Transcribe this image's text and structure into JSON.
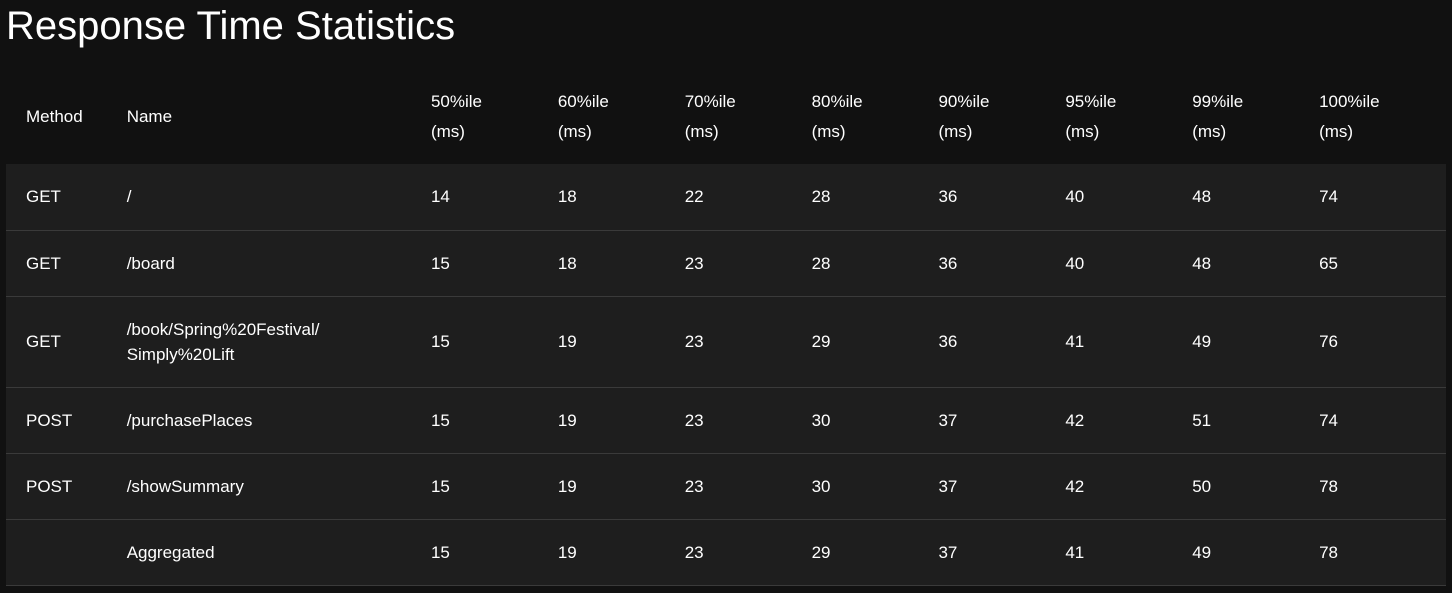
{
  "page": {
    "title": "Response Time Statistics"
  },
  "table": {
    "headers": {
      "method": "Method",
      "name": "Name",
      "percentiles": [
        {
          "line1": "50%ile",
          "line2": "(ms)"
        },
        {
          "line1": "60%ile",
          "line2": "(ms)"
        },
        {
          "line1": "70%ile",
          "line2": "(ms)"
        },
        {
          "line1": "80%ile",
          "line2": "(ms)"
        },
        {
          "line1": "90%ile",
          "line2": "(ms)"
        },
        {
          "line1": "95%ile",
          "line2": "(ms)"
        },
        {
          "line1": "99%ile",
          "line2": "(ms)"
        },
        {
          "line1": "100%ile",
          "line2": "(ms)"
        }
      ]
    },
    "rows": [
      {
        "method": "GET",
        "name_line1": "/",
        "name_line2": "",
        "values": [
          "14",
          "18",
          "22",
          "28",
          "36",
          "40",
          "48",
          "74"
        ]
      },
      {
        "method": "GET",
        "name_line1": "/board",
        "name_line2": "",
        "values": [
          "15",
          "18",
          "23",
          "28",
          "36",
          "40",
          "48",
          "65"
        ]
      },
      {
        "method": "GET",
        "name_line1": "/book/Spring%20Festival/",
        "name_line2": "Simply%20Lift",
        "values": [
          "15",
          "19",
          "23",
          "29",
          "36",
          "41",
          "49",
          "76"
        ]
      },
      {
        "method": "POST",
        "name_line1": "/purchasePlaces",
        "name_line2": "",
        "values": [
          "15",
          "19",
          "23",
          "30",
          "37",
          "42",
          "51",
          "74"
        ]
      },
      {
        "method": "POST",
        "name_line1": "/showSummary",
        "name_line2": "",
        "values": [
          "15",
          "19",
          "23",
          "30",
          "37",
          "42",
          "50",
          "78"
        ]
      },
      {
        "method": "",
        "name_line1": "Aggregated",
        "name_line2": "",
        "values": [
          "15",
          "19",
          "23",
          "29",
          "37",
          "41",
          "49",
          "78"
        ]
      }
    ]
  },
  "colors": {
    "background": "#111111",
    "row_background": "#1e1e1e",
    "row_border": "#3a3a3a",
    "text": "#ffffff"
  }
}
